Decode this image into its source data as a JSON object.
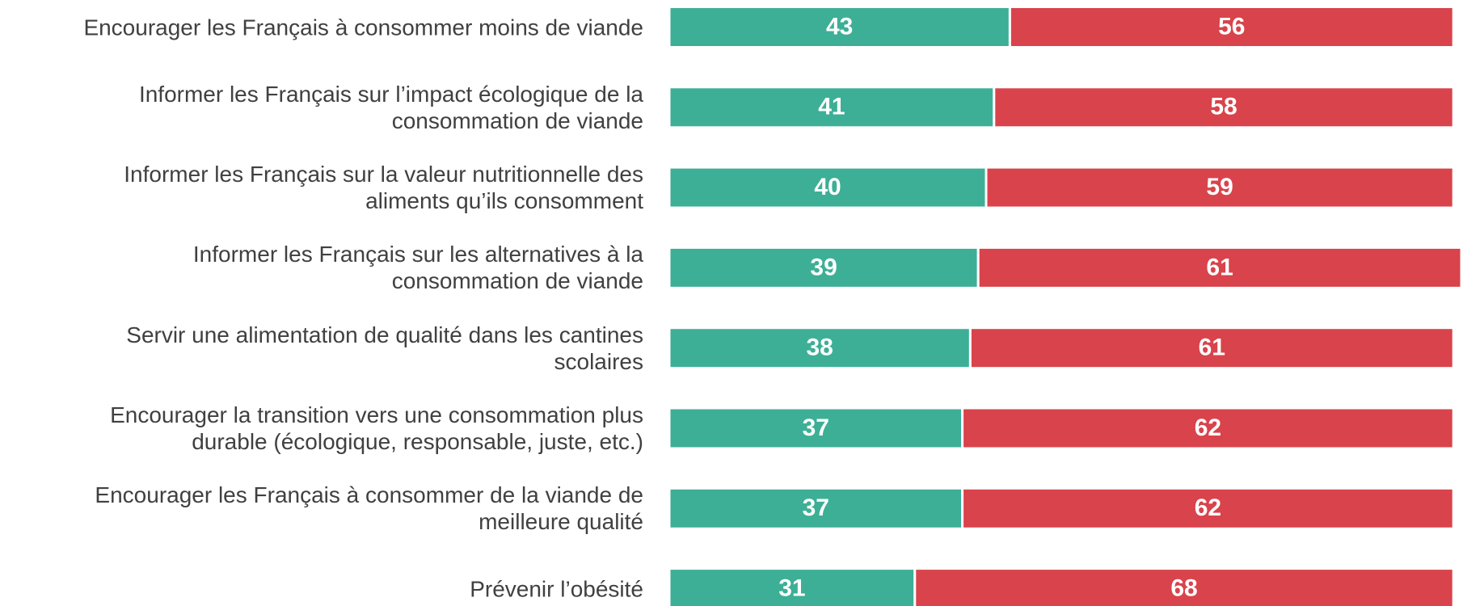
{
  "chart_data": {
    "type": "stacked-barh",
    "categories": [
      "Encourager les Français à consommer moins de viande",
      "Informer les Français sur l’impact écologique de la\nconsommation de viande",
      "Informer les Français sur la valeur nutritionnelle des\naliments qu’ils consomment",
      "Informer les Français sur les alternatives à la\nconsommation de viande",
      "Servir une alimentation de qualité dans les cantines\nscolaires",
      "Encourager la transition vers une consommation plus\ndurable (écologique, responsable, juste, etc.)",
      "Encourager les Français à consommer de la viande de\nmeilleure qualité",
      "Prévenir l’obésité"
    ],
    "series": [
      {
        "color": "#3daf96",
        "values": [
          43,
          41,
          40,
          39,
          38,
          37,
          37,
          31
        ]
      },
      {
        "color": "#d9434b",
        "values": [
          56,
          58,
          59,
          61,
          61,
          62,
          62,
          68
        ]
      }
    ],
    "xlim": [
      0,
      100
    ]
  }
}
